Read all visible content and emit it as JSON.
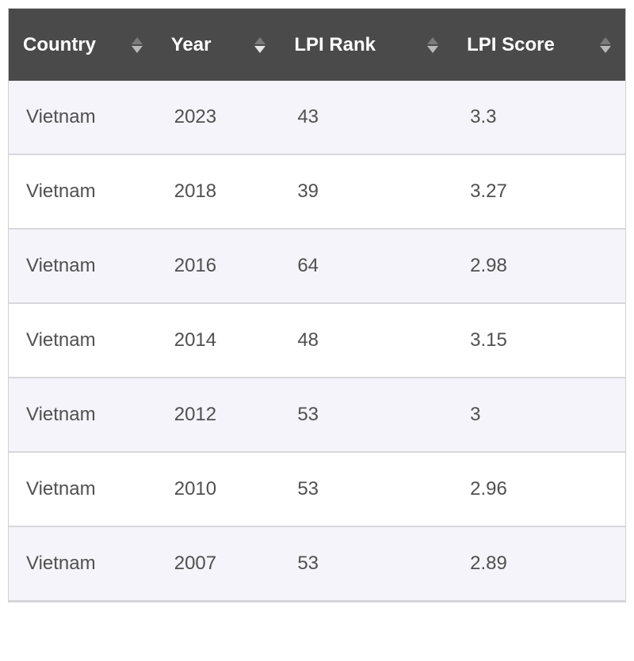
{
  "table": {
    "type": "table",
    "header_bg": "#4a4a4a",
    "header_text_color": "#ffffff",
    "row_odd_bg": "#f4f4fa",
    "row_even_bg": "#ffffff",
    "cell_text_color": "#505050",
    "border_color": "#d8d8dc",
    "header_fontsize": 24,
    "cell_fontsize": 24,
    "sort_arrow_inactive": "#7a7a7a",
    "sort_arrow_active": "#e8e8e8",
    "columns": [
      {
        "label": "Country",
        "width_pct": 24,
        "sorted": "none"
      },
      {
        "label": "Year",
        "width_pct": 20,
        "sorted": "desc"
      },
      {
        "label": "LPI Rank",
        "width_pct": 28,
        "sorted": "none"
      },
      {
        "label": "LPI Score",
        "width_pct": 28,
        "sorted": "none"
      }
    ],
    "rows": [
      {
        "country": "Vietnam",
        "year": "2023",
        "rank": "43",
        "score": "3.3"
      },
      {
        "country": "Vietnam",
        "year": "2018",
        "rank": "39",
        "score": "3.27"
      },
      {
        "country": "Vietnam",
        "year": "2016",
        "rank": "64",
        "score": "2.98"
      },
      {
        "country": "Vietnam",
        "year": "2014",
        "rank": "48",
        "score": "3.15"
      },
      {
        "country": "Vietnam",
        "year": "2012",
        "rank": "53",
        "score": "3"
      },
      {
        "country": "Vietnam",
        "year": "2010",
        "rank": "53",
        "score": "2.96"
      },
      {
        "country": "Vietnam",
        "year": "2007",
        "rank": "53",
        "score": "2.89"
      }
    ]
  }
}
